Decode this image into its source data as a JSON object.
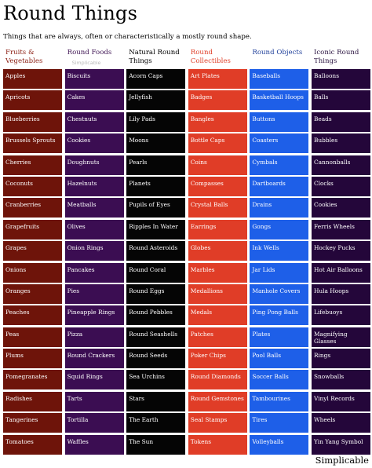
{
  "title": "Round Things",
  "subtitle": "Things that are always, often or characteristically a mostly round shape.",
  "footer": "Simplicable",
  "columns": [
    {
      "heading": "Fruits & Vegetables",
      "note": "",
      "header_color": "#8b1e12",
      "cell_color": "#6e140a",
      "items": [
        "Apples",
        "Apricots",
        "Blueberries",
        "Brussels Sprouts",
        "Cherries",
        "Coconuts",
        "Cranberries",
        "Grapefruits",
        "Grapes",
        "Onions",
        "Oranges",
        "Peaches",
        "Peas",
        "Plums",
        "Pomegranates",
        "Radishes",
        "Tangerines",
        "Tomatoes"
      ]
    },
    {
      "heading": "Round Foods",
      "note": "Simplicable",
      "header_color": "#3f1554",
      "cell_color": "#3b0d52",
      "items": [
        "Biscuits",
        "Cakes",
        "Chestnuts",
        "Cookies",
        "Doughnuts",
        "Hazelnuts",
        "Meatballs",
        "Olives",
        "Onion Rings",
        "Pancakes",
        "Pies",
        "Pineapple Rings",
        "Pizza",
        "Round Crackers",
        "Squid Rings",
        "Tarts",
        "Tortilla",
        "Waffles"
      ]
    },
    {
      "heading": "Natural Round Things",
      "note": "",
      "header_color": "#000000",
      "cell_color": "#050505",
      "items": [
        "Acorn Caps",
        "Jellyfish",
        "Lily Pads",
        "Moons",
        "Pearls",
        "Planets",
        "Pupils of Eyes",
        "Ripples In Water",
        "Round Asteroids",
        "Round Coral",
        "Round Eggs",
        "Round Pebbles",
        "Round Seashells",
        "Round Seeds",
        "Sea Urchins",
        "Stars",
        "The Earth",
        "The Sun"
      ]
    },
    {
      "heading": "Round Collectibles",
      "note": "",
      "header_color": "#e0402a",
      "cell_color": "#e03d27",
      "items": [
        "Art Plates",
        "Badges",
        "Bangles",
        "Bottle Caps",
        "Coins",
        "Compasses",
        "Crystal Balls",
        "Earrings",
        "Globes",
        "Marbles",
        "Medallions",
        "Medals",
        "Patches",
        "Poker Chips",
        "Round Diamonds",
        "Round Gemstones",
        "Seal Stamps",
        "Tokens"
      ]
    },
    {
      "heading": "Round Objects",
      "note": "",
      "header_color": "#1f3f9a",
      "cell_color": "#1e5fe8",
      "items": [
        "Baseballs",
        "Basketball Hoops",
        "Buttons",
        "Coasters",
        "Cymbals",
        "Dartboards",
        "Drains",
        "Gongs",
        "Ink Wells",
        "Jar Lids",
        "Manhole Covers",
        "Ping Pong Balls",
        "Plates",
        "Pool Balls",
        "Soccer Balls",
        "Tambourines",
        "Tires",
        "Volleyballs"
      ]
    },
    {
      "heading": "Iconic Round Things",
      "note": "",
      "header_color": "#2a1340",
      "cell_color": "#24063a",
      "items": [
        "Balloons",
        "Balls",
        "Beads",
        "Bubbles",
        "Cannonballs",
        "Clocks",
        "Cookies",
        "Ferris Wheels",
        "Hockey Pucks",
        "Hot Air Balloons",
        "Hula Hoops",
        "Lifebuoys",
        "Magnifying Glasses",
        "Rings",
        "Snowballs",
        "Vinyl Records",
        "Wheels",
        "Yin Yang Symbol"
      ]
    }
  ]
}
